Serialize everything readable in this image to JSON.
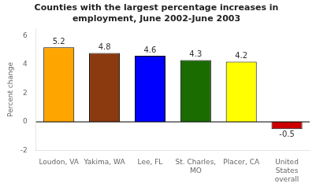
{
  "chart_data": {
    "type": "bar",
    "title": "Counties with the largest percentage increases in\nemployment, June 2002-June 2003",
    "categories": [
      "Loudon, VA",
      "Yakima, WA",
      "Lee, FL",
      "St. Charles,\nMO",
      "Placer, CA",
      "United\nStates\noverall"
    ],
    "values": [
      5.2,
      4.8,
      4.6,
      4.3,
      4.2,
      -0.5
    ],
    "colors": [
      "#FFA500",
      "#8B3A0F",
      "#0000FF",
      "#1A6B00",
      "#FFFF00",
      "#CC0000"
    ],
    "ylabel": "Percent change",
    "ylim": [
      -2,
      6.5
    ],
    "yticks": [
      -2,
      0,
      2,
      4,
      6
    ],
    "grid": false,
    "data_labels": true
  }
}
